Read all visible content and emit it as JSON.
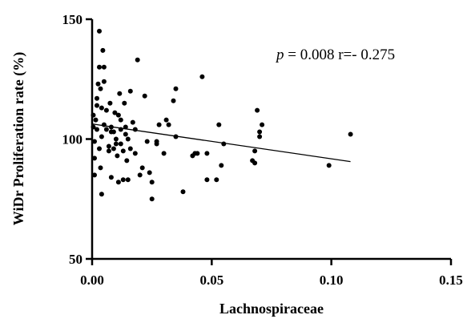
{
  "chart_data": {
    "type": "scatter",
    "title": "",
    "xlabel": "Lachnospiraceae",
    "ylabel": "WiDr Proliferation rate (%)",
    "xlim": [
      0,
      0.15
    ],
    "ylim": [
      50,
      150
    ],
    "x_ticks": [
      "0.00",
      "0.05",
      "0.10",
      "0.15"
    ],
    "y_ticks": [
      "50",
      "100",
      "150"
    ],
    "grid": false,
    "annotation": {
      "p_symbol": "p",
      "text": " = 0.008 r=- 0.275"
    },
    "regression_line": {
      "x": [
        0,
        0.108
      ],
      "y": [
        106.3,
        90.6
      ]
    },
    "points": [
      {
        "x": 0.0005,
        "y": 105
      },
      {
        "x": 0.0005,
        "y": 110
      },
      {
        "x": 0.001,
        "y": 85
      },
      {
        "x": 0.001,
        "y": 92
      },
      {
        "x": 0.001,
        "y": 99
      },
      {
        "x": 0.0015,
        "y": 108
      },
      {
        "x": 0.002,
        "y": 104
      },
      {
        "x": 0.002,
        "y": 114
      },
      {
        "x": 0.002,
        "y": 117
      },
      {
        "x": 0.0025,
        "y": 123
      },
      {
        "x": 0.003,
        "y": 145
      },
      {
        "x": 0.003,
        "y": 130
      },
      {
        "x": 0.003,
        "y": 96
      },
      {
        "x": 0.0035,
        "y": 88
      },
      {
        "x": 0.0035,
        "y": 121
      },
      {
        "x": 0.004,
        "y": 77
      },
      {
        "x": 0.004,
        "y": 113
      },
      {
        "x": 0.004,
        "y": 101
      },
      {
        "x": 0.0045,
        "y": 137
      },
      {
        "x": 0.005,
        "y": 130
      },
      {
        "x": 0.005,
        "y": 106
      },
      {
        "x": 0.005,
        "y": 124
      },
      {
        "x": 0.006,
        "y": 112
      },
      {
        "x": 0.006,
        "y": 104
      },
      {
        "x": 0.007,
        "y": 97
      },
      {
        "x": 0.007,
        "y": 95
      },
      {
        "x": 0.0075,
        "y": 115
      },
      {
        "x": 0.008,
        "y": 105
      },
      {
        "x": 0.008,
        "y": 103
      },
      {
        "x": 0.008,
        "y": 84
      },
      {
        "x": 0.009,
        "y": 96
      },
      {
        "x": 0.009,
        "y": 103
      },
      {
        "x": 0.0095,
        "y": 111
      },
      {
        "x": 0.01,
        "y": 100
      },
      {
        "x": 0.01,
        "y": 98
      },
      {
        "x": 0.0105,
        "y": 93
      },
      {
        "x": 0.011,
        "y": 82
      },
      {
        "x": 0.011,
        "y": 110
      },
      {
        "x": 0.0115,
        "y": 119
      },
      {
        "x": 0.012,
        "y": 108
      },
      {
        "x": 0.012,
        "y": 104
      },
      {
        "x": 0.012,
        "y": 98
      },
      {
        "x": 0.013,
        "y": 95
      },
      {
        "x": 0.013,
        "y": 83
      },
      {
        "x": 0.0135,
        "y": 115
      },
      {
        "x": 0.014,
        "y": 102
      },
      {
        "x": 0.014,
        "y": 105
      },
      {
        "x": 0.0145,
        "y": 91
      },
      {
        "x": 0.015,
        "y": 100
      },
      {
        "x": 0.015,
        "y": 83
      },
      {
        "x": 0.016,
        "y": 120
      },
      {
        "x": 0.016,
        "y": 96
      },
      {
        "x": 0.017,
        "y": 107
      },
      {
        "x": 0.018,
        "y": 104
      },
      {
        "x": 0.018,
        "y": 94
      },
      {
        "x": 0.019,
        "y": 133
      },
      {
        "x": 0.02,
        "y": 85
      },
      {
        "x": 0.021,
        "y": 88
      },
      {
        "x": 0.022,
        "y": 118
      },
      {
        "x": 0.023,
        "y": 99
      },
      {
        "x": 0.024,
        "y": 86
      },
      {
        "x": 0.025,
        "y": 75
      },
      {
        "x": 0.025,
        "y": 82
      },
      {
        "x": 0.027,
        "y": 99
      },
      {
        "x": 0.027,
        "y": 98
      },
      {
        "x": 0.028,
        "y": 106
      },
      {
        "x": 0.03,
        "y": 94
      },
      {
        "x": 0.031,
        "y": 108
      },
      {
        "x": 0.032,
        "y": 106
      },
      {
        "x": 0.034,
        "y": 116
      },
      {
        "x": 0.035,
        "y": 121
      },
      {
        "x": 0.035,
        "y": 101
      },
      {
        "x": 0.038,
        "y": 78
      },
      {
        "x": 0.042,
        "y": 93
      },
      {
        "x": 0.043,
        "y": 94
      },
      {
        "x": 0.044,
        "y": 94
      },
      {
        "x": 0.046,
        "y": 126
      },
      {
        "x": 0.048,
        "y": 94
      },
      {
        "x": 0.048,
        "y": 83
      },
      {
        "x": 0.052,
        "y": 83
      },
      {
        "x": 0.053,
        "y": 106
      },
      {
        "x": 0.054,
        "y": 89
      },
      {
        "x": 0.055,
        "y": 98
      },
      {
        "x": 0.067,
        "y": 91
      },
      {
        "x": 0.068,
        "y": 90
      },
      {
        "x": 0.068,
        "y": 95
      },
      {
        "x": 0.069,
        "y": 112
      },
      {
        "x": 0.07,
        "y": 101
      },
      {
        "x": 0.07,
        "y": 103
      },
      {
        "x": 0.071,
        "y": 106
      },
      {
        "x": 0.099,
        "y": 89
      },
      {
        "x": 0.108,
        "y": 102
      }
    ]
  }
}
